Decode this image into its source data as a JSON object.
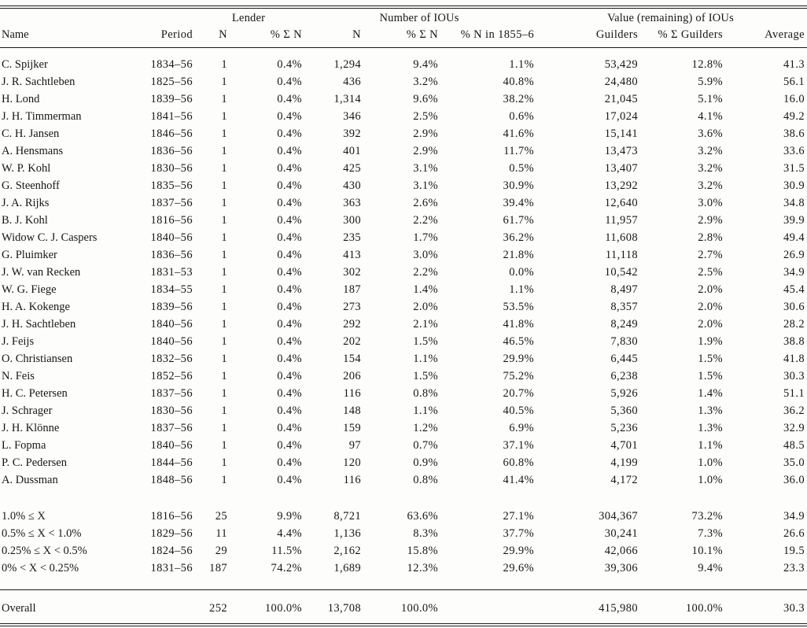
{
  "table": {
    "column_groups": [
      {
        "label": "",
        "span": 2
      },
      {
        "label": "Lender",
        "span": 2
      },
      {
        "label": "Number of IOUs",
        "span": 3
      },
      {
        "label": "Value (remaining) of IOUs",
        "span": 3
      }
    ],
    "columns": [
      "Name",
      "Period",
      "N",
      "% Σ N",
      "N",
      "% Σ N",
      "% N in 1855–6",
      "Guilders",
      "% Σ Guilders",
      "Average"
    ],
    "column_keys": [
      "name",
      "period",
      "lender-n",
      "lender-pct-n",
      "iou-n",
      "iou-pct-n",
      "pct-n-1855-6",
      "guilders",
      "pct-guilders",
      "average"
    ],
    "lender_rows": [
      [
        "C. Spijker",
        "1834–56",
        "1",
        "0.4%",
        "1,294",
        "9.4%",
        "1.1%",
        "53,429",
        "12.8%",
        "41.3"
      ],
      [
        "J. R. Sachtleben",
        "1825–56",
        "1",
        "0.4%",
        "436",
        "3.2%",
        "40.8%",
        "24,480",
        "5.9%",
        "56.1"
      ],
      [
        "H. Lond",
        "1839–56",
        "1",
        "0.4%",
        "1,314",
        "9.6%",
        "38.2%",
        "21,045",
        "5.1%",
        "16.0"
      ],
      [
        "J. H. Timmerman",
        "1841–56",
        "1",
        "0.4%",
        "346",
        "2.5%",
        "0.6%",
        "17,024",
        "4.1%",
        "49.2"
      ],
      [
        "C. H. Jansen",
        "1846–56",
        "1",
        "0.4%",
        "392",
        "2.9%",
        "41.6%",
        "15,141",
        "3.6%",
        "38.6"
      ],
      [
        "A. Hensmans",
        "1836–56",
        "1",
        "0.4%",
        "401",
        "2.9%",
        "11.7%",
        "13,473",
        "3.2%",
        "33.6"
      ],
      [
        "W. P. Kohl",
        "1830–56",
        "1",
        "0.4%",
        "425",
        "3.1%",
        "0.5%",
        "13,407",
        "3.2%",
        "31.5"
      ],
      [
        "G. Steenhoff",
        "1835–56",
        "1",
        "0.4%",
        "430",
        "3.1%",
        "30.9%",
        "13,292",
        "3.2%",
        "30.9"
      ],
      [
        "J. A. Rijks",
        "1837–56",
        "1",
        "0.4%",
        "363",
        "2.6%",
        "39.4%",
        "12,640",
        "3.0%",
        "34.8"
      ],
      [
        "B. J. Kohl",
        "1816–56",
        "1",
        "0.4%",
        "300",
        "2.2%",
        "61.7%",
        "11,957",
        "2.9%",
        "39.9"
      ],
      [
        "Widow C. J. Caspers",
        "1840–56",
        "1",
        "0.4%",
        "235",
        "1.7%",
        "36.2%",
        "11,608",
        "2.8%",
        "49.4"
      ],
      [
        "G. Pluimker",
        "1836–56",
        "1",
        "0.4%",
        "413",
        "3.0%",
        "21.8%",
        "11,118",
        "2.7%",
        "26.9"
      ],
      [
        "J. W. van Recken",
        "1831–53",
        "1",
        "0.4%",
        "302",
        "2.2%",
        "0.0%",
        "10,542",
        "2.5%",
        "34.9"
      ],
      [
        "W. G. Fiege",
        "1834–55",
        "1",
        "0.4%",
        "187",
        "1.4%",
        "1.1%",
        "8,497",
        "2.0%",
        "45.4"
      ],
      [
        "H. A. Kokenge",
        "1839–56",
        "1",
        "0.4%",
        "273",
        "2.0%",
        "53.5%",
        "8,357",
        "2.0%",
        "30.6"
      ],
      [
        "J. H. Sachtleben",
        "1840–56",
        "1",
        "0.4%",
        "292",
        "2.1%",
        "41.8%",
        "8,249",
        "2.0%",
        "28.2"
      ],
      [
        "J. Feijs",
        "1840–56",
        "1",
        "0.4%",
        "202",
        "1.5%",
        "46.5%",
        "7,830",
        "1.9%",
        "38.8"
      ],
      [
        "O. Christiansen",
        "1832–56",
        "1",
        "0.4%",
        "154",
        "1.1%",
        "29.9%",
        "6,445",
        "1.5%",
        "41.8"
      ],
      [
        "N. Feis",
        "1852–56",
        "1",
        "0.4%",
        "206",
        "1.5%",
        "75.2%",
        "6,238",
        "1.5%",
        "30.3"
      ],
      [
        "H. C. Petersen",
        "1837–56",
        "1",
        "0.4%",
        "116",
        "0.8%",
        "20.7%",
        "5,926",
        "1.4%",
        "51.1"
      ],
      [
        "J. Schrager",
        "1830–56",
        "1",
        "0.4%",
        "148",
        "1.1%",
        "40.5%",
        "5,360",
        "1.3%",
        "36.2"
      ],
      [
        "J. H. Klönne",
        "1837–56",
        "1",
        "0.4%",
        "159",
        "1.2%",
        "6.9%",
        "5,236",
        "1.3%",
        "32.9"
      ],
      [
        "L. Fopma",
        "1840–56",
        "1",
        "0.4%",
        "97",
        "0.7%",
        "37.1%",
        "4,701",
        "1.1%",
        "48.5"
      ],
      [
        "P. C. Pedersen",
        "1844–56",
        "1",
        "0.4%",
        "120",
        "0.9%",
        "60.8%",
        "4,199",
        "1.0%",
        "35.0"
      ],
      [
        "A. Dussman",
        "1848–56",
        "1",
        "0.4%",
        "116",
        "0.8%",
        "41.4%",
        "4,172",
        "1.0%",
        "36.0"
      ]
    ],
    "group_rows": [
      [
        "1.0% ≤ X",
        "1816–56",
        "25",
        "9.9%",
        "8,721",
        "63.6%",
        "27.1%",
        "304,367",
        "73.2%",
        "34.9"
      ],
      [
        "0.5% ≤ X < 1.0%",
        "1829–56",
        "11",
        "4.4%",
        "1,136",
        "8.3%",
        "37.7%",
        "30,241",
        "7.3%",
        "26.6"
      ],
      [
        "0.25% ≤ X < 0.5%",
        "1824–56",
        "29",
        "11.5%",
        "2,162",
        "15.8%",
        "29.9%",
        "42,066",
        "10.1%",
        "19.5"
      ],
      [
        "0% < X < 0.25%",
        "1831–56",
        "187",
        "74.2%",
        "1,689",
        "12.3%",
        "29.6%",
        "39,306",
        "9.4%",
        "23.3"
      ]
    ],
    "overall_row": [
      "Overall",
      "",
      "252",
      "100.0%",
      "13,708",
      "100.0%",
      "",
      "415,980",
      "100.0%",
      "30.3"
    ]
  }
}
